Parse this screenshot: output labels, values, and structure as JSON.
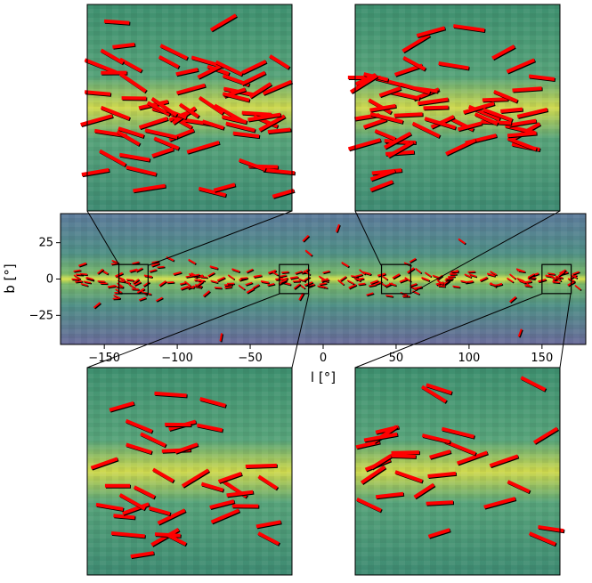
{
  "chart_data": {
    "type": "scatter",
    "title": "",
    "xlabel": "l [°]",
    "ylabel": "b [°]",
    "xlim": [
      -180,
      180
    ],
    "ylim": [
      -45,
      45
    ],
    "x_ticks": [
      -150,
      -100,
      -50,
      0,
      50,
      100,
      150
    ],
    "y_ticks": [
      -25,
      0,
      25
    ],
    "x_tick_labels": [
      "−150",
      "−100",
      "−50",
      "0",
      "50",
      "100",
      "150"
    ],
    "y_tick_labels": [
      "−25",
      "0",
      "25"
    ],
    "grid": false,
    "background_map": "galactic all-sky map (green/blue/purple colormap, yellow along plane b=0)",
    "series": [
      {
        "color": "#000000",
        "marker": "oriented segment (reference)"
      },
      {
        "color": "#ff0000",
        "marker": "oriented segment (measured)"
      }
    ],
    "zoom_regions": [
      {
        "l_range": [
          -140,
          -120
        ],
        "b_range": [
          -10,
          10
        ],
        "inset": "top-left"
      },
      {
        "l_range": [
          40,
          60
        ],
        "b_range": [
          -10,
          10
        ],
        "inset": "top-right"
      },
      {
        "l_range": [
          -30,
          -10
        ],
        "b_range": [
          -10,
          10
        ],
        "inset": "bottom-left"
      },
      {
        "l_range": [
          150,
          170
        ],
        "b_range": [
          -10,
          10
        ],
        "inset": "bottom-right"
      }
    ],
    "segments": [
      {
        "l": -165,
        "b": 10,
        "angle": 20
      },
      {
        "l": -160,
        "b": 0,
        "angle": -15
      },
      {
        "l": -155,
        "b": -18,
        "angle": 40
      },
      {
        "l": -150,
        "b": 5,
        "angle": -30
      },
      {
        "l": -145,
        "b": -5,
        "angle": 10
      },
      {
        "l": -140,
        "b": 3,
        "angle": 25
      },
      {
        "l": -135,
        "b": -2,
        "angle": -20
      },
      {
        "l": -130,
        "b": 6,
        "angle": 15
      },
      {
        "l": -125,
        "b": -8,
        "angle": 30
      },
      {
        "l": -120,
        "b": 2,
        "angle": -10
      },
      {
        "l": -115,
        "b": 10,
        "angle": 20
      },
      {
        "l": -110,
        "b": -3,
        "angle": 35
      },
      {
        "l": -105,
        "b": 14,
        "angle": -25
      },
      {
        "l": -100,
        "b": 4,
        "angle": 15
      },
      {
        "l": -95,
        "b": -6,
        "angle": 20
      },
      {
        "l": -90,
        "b": 12,
        "angle": -30
      },
      {
        "l": -85,
        "b": 2,
        "angle": 10
      },
      {
        "l": -80,
        "b": -10,
        "angle": 40
      },
      {
        "l": -75,
        "b": 8,
        "angle": -15
      },
      {
        "l": -70,
        "b": 0,
        "angle": 25
      },
      {
        "l": -65,
        "b": -4,
        "angle": 5
      },
      {
        "l": -60,
        "b": 6,
        "angle": -20
      },
      {
        "l": -55,
        "b": 0,
        "angle": 15
      },
      {
        "l": -50,
        "b": -8,
        "angle": 30
      },
      {
        "l": -45,
        "b": 2,
        "angle": 10
      },
      {
        "l": -40,
        "b": -2,
        "angle": -10
      },
      {
        "l": -35,
        "b": 5,
        "angle": 20
      },
      {
        "l": -30,
        "b": 0,
        "angle": 5
      },
      {
        "l": -25,
        "b": -3,
        "angle": -15
      },
      {
        "l": -20,
        "b": 1,
        "angle": 10
      },
      {
        "l": -15,
        "b": -12,
        "angle": 60
      },
      {
        "l": -12,
        "b": 28,
        "angle": 45
      },
      {
        "l": -10,
        "b": 18,
        "angle": -40
      },
      {
        "l": 10,
        "b": 35,
        "angle": 70
      },
      {
        "l": 15,
        "b": 10,
        "angle": -30
      },
      {
        "l": 20,
        "b": -5,
        "angle": 25
      },
      {
        "l": 25,
        "b": 0,
        "angle": 10
      },
      {
        "l": 30,
        "b": 4,
        "angle": -15
      },
      {
        "l": 35,
        "b": -2,
        "angle": 20
      },
      {
        "l": 40,
        "b": 3,
        "angle": 15
      },
      {
        "l": 45,
        "b": -4,
        "angle": 25
      },
      {
        "l": 50,
        "b": 2,
        "angle": 30
      },
      {
        "l": 55,
        "b": -1,
        "angle": 20
      },
      {
        "l": 60,
        "b": 6,
        "angle": 35
      },
      {
        "l": 65,
        "b": -6,
        "angle": 10
      },
      {
        "l": 70,
        "b": 0,
        "angle": -20
      },
      {
        "l": 80,
        "b": -3,
        "angle": 15
      },
      {
        "l": 90,
        "b": 5,
        "angle": 20
      },
      {
        "l": 95,
        "b": 26,
        "angle": -35
      },
      {
        "l": 100,
        "b": -2,
        "angle": 10
      },
      {
        "l": 110,
        "b": 0,
        "angle": 25
      },
      {
        "l": 115,
        "b": 3,
        "angle": -15
      },
      {
        "l": 120,
        "b": -4,
        "angle": 15
      },
      {
        "l": 130,
        "b": -14,
        "angle": 40
      },
      {
        "l": 135,
        "b": 6,
        "angle": -20
      },
      {
        "l": 140,
        "b": -2,
        "angle": 10
      },
      {
        "l": 145,
        "b": 3,
        "angle": 20
      },
      {
        "l": 150,
        "b": -1,
        "angle": 15
      },
      {
        "l": 155,
        "b": 2,
        "angle": -10
      },
      {
        "l": 160,
        "b": 0,
        "angle": 20
      },
      {
        "l": 165,
        "b": 4,
        "angle": 15
      },
      {
        "l": 170,
        "b": -3,
        "angle": 30
      },
      {
        "l": 135,
        "b": -37,
        "angle": 70
      },
      {
        "l": -70,
        "b": -40,
        "angle": 80
      }
    ]
  }
}
